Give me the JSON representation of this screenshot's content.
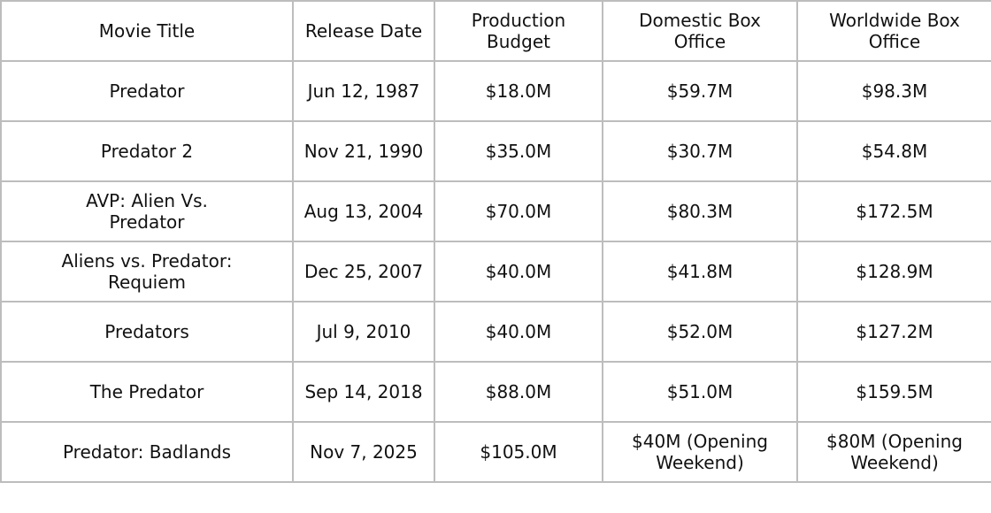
{
  "table": {
    "headers": [
      "Movie Title",
      "Release Date",
      "Production Budget",
      "Domestic Box Office",
      "Worldwide Box Office"
    ],
    "rows": [
      [
        "Predator",
        "Jun 12, 1987",
        "$18.0M",
        "$59.7M",
        "$98.3M"
      ],
      [
        "Predator 2",
        "Nov 21, 1990",
        "$35.0M",
        "$30.7M",
        "$54.8M"
      ],
      [
        "AVP: Alien Vs. Predator",
        "Aug 13, 2004",
        "$70.0M",
        "$80.3M",
        "$172.5M"
      ],
      [
        "Aliens vs. Predator: Requiem",
        "Dec 25, 2007",
        "$40.0M",
        "$41.8M",
        "$128.9M"
      ],
      [
        "Predators",
        "Jul 9, 2010",
        "$40.0M",
        "$52.0M",
        "$127.2M"
      ],
      [
        "The Predator",
        "Sep 14, 2018",
        "$88.0M",
        "$51.0M",
        "$159.5M"
      ],
      [
        "Predator: Badlands",
        "Nov 7, 2025",
        "$105.0M",
        "$40M (Opening Weekend)",
        "$80M (Opening Weekend)"
      ]
    ]
  }
}
